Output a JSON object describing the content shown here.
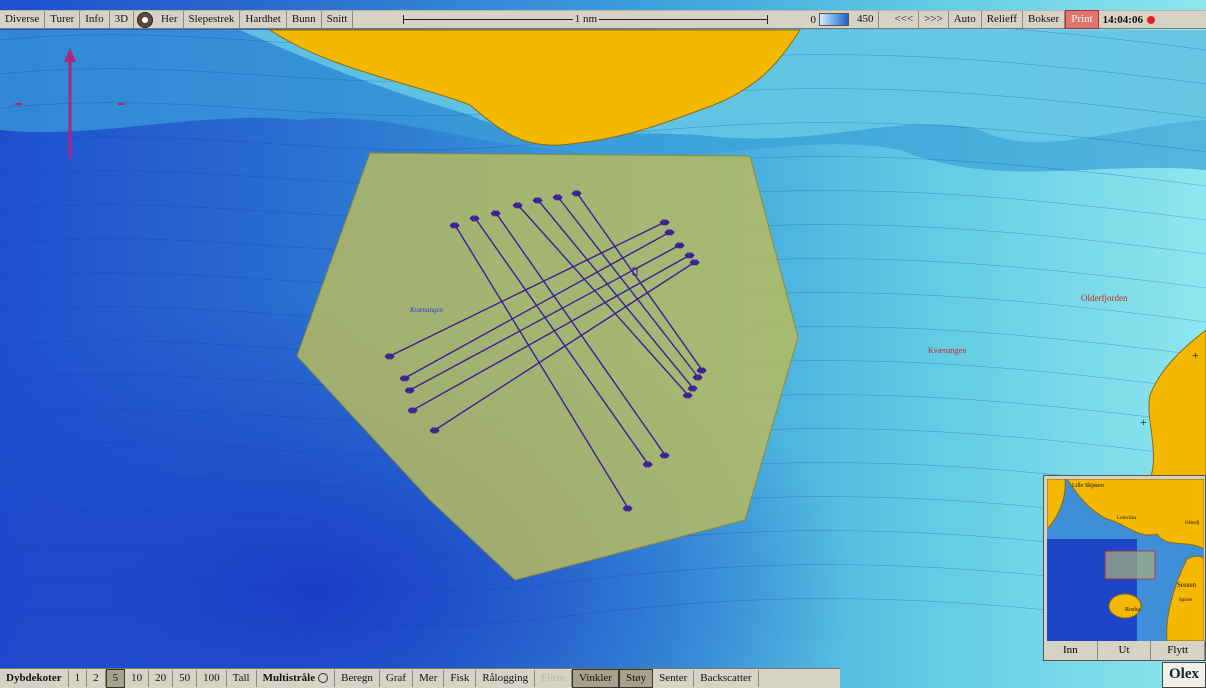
{
  "topbar": {
    "buttons": [
      "Diverse",
      "Turer",
      "Info",
      "3D",
      "Her",
      "Slepestrek",
      "Hardhet",
      "Bunn",
      "Snitt"
    ],
    "scale_label": "1 nm",
    "depth_min": "0",
    "depth_max": "450",
    "nav_prev": "<<<",
    "nav_next": ">>>",
    "right_buttons": [
      "Auto",
      "Relieff",
      "Bokser"
    ],
    "print": "Print",
    "time": "14:04:06"
  },
  "bottombar": {
    "dybdekoter": "Dybdekoter",
    "contour_options": [
      "1",
      "2",
      "5",
      "10",
      "20",
      "50",
      "100",
      "Tall"
    ],
    "selected_contour": "5",
    "multistrale": "Multistråle",
    "buttons": [
      "Beregn",
      "Graf",
      "Mer",
      "Fisk",
      "Rålogging",
      "Filtre",
      "Vinkler",
      "Støy",
      "Senter",
      "Backscatter"
    ],
    "selected": [
      "Vinkler",
      "Støy"
    ],
    "disabled": [
      "Filtre"
    ]
  },
  "map_labels": {
    "area_label_1": "Kvænangen",
    "area_label_2": "Kvænangen",
    "place_1": "Olderfjorden"
  },
  "minimap": {
    "labels": [
      "Lille Skjøsen",
      "Loteviika",
      "Olderfj",
      "Sessen",
      "Rosha",
      "Spisen"
    ],
    "buttons": [
      "Inn",
      "Ut",
      "Flytt"
    ]
  },
  "brand": "Olex",
  "colors": {
    "land": "#f5b800",
    "deep": "#1f4fd0",
    "shallow": "#7fdde8",
    "survey_area": "#b4ba5c",
    "track": "#3c1e96"
  }
}
